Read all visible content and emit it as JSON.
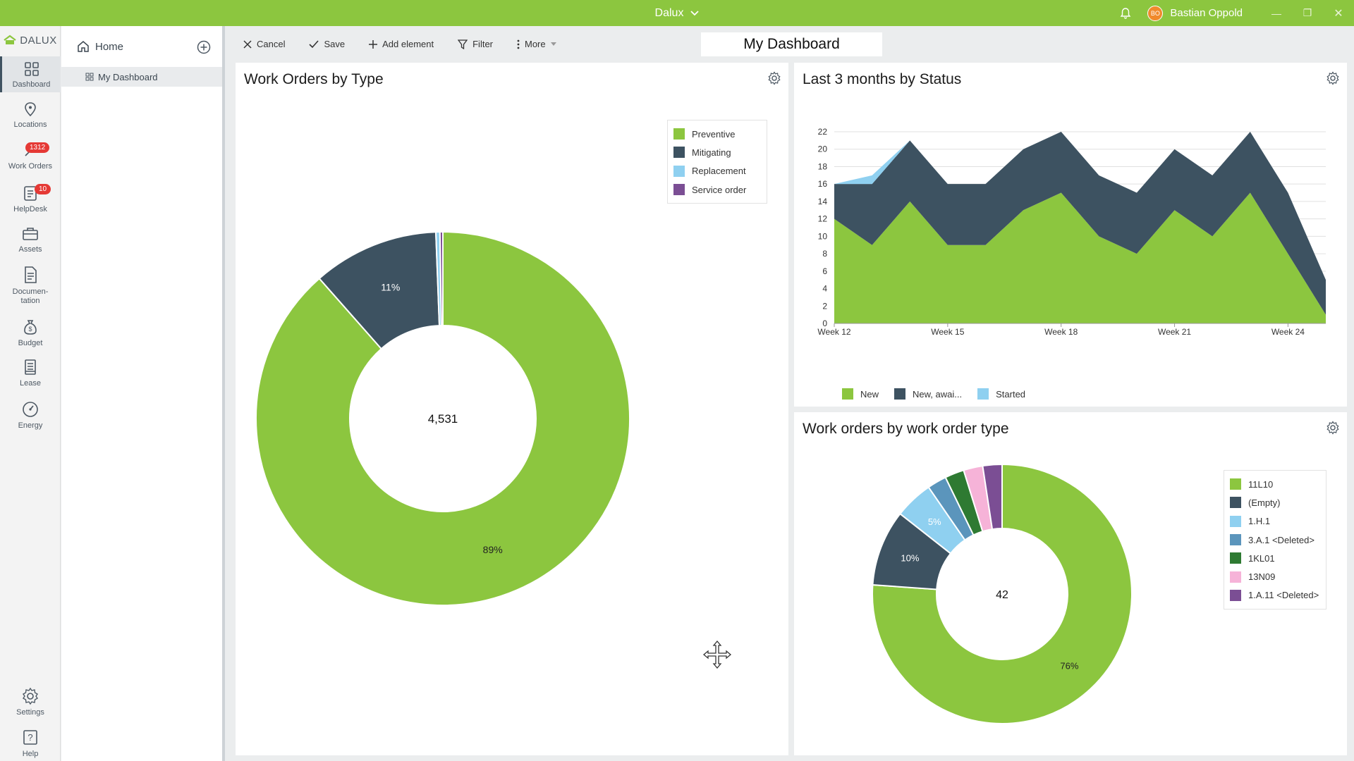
{
  "titlebar": {
    "app_name": "Dalux",
    "user_initials": "BO",
    "user_name": "Bastian Oppold"
  },
  "colors": {
    "accent": "#8cc63f",
    "dark": "#3d5261",
    "light_blue": "#8fd0f0",
    "steel_blue": "#5b95bc",
    "dark_green": "#2e7a32",
    "pink": "#f6b3d8",
    "purple": "#7b4e94"
  },
  "rail": {
    "logo": "DALUX",
    "items": [
      {
        "label": "Dashboard",
        "icon": "dashboard-icon"
      },
      {
        "label": "Locations",
        "icon": "location-pin-icon"
      },
      {
        "label": "Work Orders",
        "icon": "wrench-icon",
        "badge": "1312"
      },
      {
        "label": "HelpDesk",
        "icon": "helpdesk-icon",
        "badge": "10"
      },
      {
        "label": "Assets",
        "icon": "toolbox-icon"
      },
      {
        "label": "Documen-",
        "label2": "tation",
        "icon": "document-icon"
      },
      {
        "label": "Budget",
        "icon": "money-bag-icon"
      },
      {
        "label": "Lease",
        "icon": "lease-icon"
      },
      {
        "label": "Energy",
        "icon": "gauge-icon"
      },
      {
        "label": "Settings",
        "icon": "gear-icon"
      },
      {
        "label": "Help",
        "icon": "help-icon"
      }
    ]
  },
  "nav": {
    "home": "Home",
    "sub": "My Dashboard"
  },
  "toolbar": {
    "cancel": "Cancel",
    "save": "Save",
    "add_element": "Add element",
    "filter": "Filter",
    "more": "More",
    "dashboard_title": "My Dashboard"
  },
  "panels": {
    "p1": {
      "title": "Work Orders by Type"
    },
    "p2": {
      "title": "Last 3 months by Status"
    },
    "p3": {
      "title": "Work orders by work order type"
    }
  },
  "chart_data": [
    {
      "type": "pie",
      "title": "Work Orders by Type",
      "center_label": "4,531",
      "categories": [
        "Preventive",
        "Mitigating",
        "Replacement",
        "Service order"
      ],
      "values": [
        88.5,
        10.9,
        0.35,
        0.25
      ],
      "data_labels": [
        "89%",
        "11%",
        "",
        ""
      ],
      "colors": [
        "#8cc63f",
        "#3d5261",
        "#8fd0f0",
        "#7b4e94"
      ],
      "legend": "top-right"
    },
    {
      "type": "area",
      "title": "Last 3 months by Status",
      "x": [
        12,
        13,
        14,
        15,
        16,
        17,
        18,
        19,
        20,
        21,
        22,
        23,
        24,
        25
      ],
      "xticks": [
        "Week 12",
        "Week 15",
        "Week 18",
        "Week 21",
        "Week 24"
      ],
      "xtick_values": [
        12,
        15,
        18,
        21,
        24
      ],
      "yticks": [
        0,
        2,
        4,
        6,
        8,
        10,
        12,
        14,
        16,
        18,
        20,
        22
      ],
      "ylim": [
        0,
        22
      ],
      "series": [
        {
          "name": "New",
          "values": [
            12,
            9,
            14,
            9,
            9,
            13,
            15,
            10,
            8,
            13,
            10,
            15,
            8,
            1
          ],
          "color": "#8cc63f"
        },
        {
          "name": "New, awai...",
          "values": [
            4,
            7,
            7,
            7,
            7,
            7,
            7,
            7,
            7,
            7,
            7,
            7,
            7,
            4
          ],
          "color": "#3d5261"
        },
        {
          "name": "Started",
          "values": [
            0,
            1,
            0,
            0,
            0,
            0,
            0,
            0,
            0,
            0,
            0,
            0,
            0,
            0
          ],
          "color": "#8fd0f0"
        }
      ],
      "grid": true,
      "legend": "bottom"
    },
    {
      "type": "pie",
      "title": "Work orders by work order type",
      "center_label": "42",
      "categories": [
        "11L10",
        "(Empty)",
        "1.H.1",
        "3.A.1 <Deleted>",
        "1KL01",
        "13N09",
        "1.A.11 <Deleted>"
      ],
      "values": [
        76.2,
        9.5,
        4.8,
        2.4,
        2.4,
        2.4,
        2.4
      ],
      "data_labels": [
        "76%",
        "10%",
        "5%",
        "",
        "",
        "",
        ""
      ],
      "colors": [
        "#8cc63f",
        "#3d5261",
        "#8fd0f0",
        "#5b95bc",
        "#2e7a32",
        "#f6b3d8",
        "#7b4e94"
      ],
      "legend": "right"
    }
  ]
}
